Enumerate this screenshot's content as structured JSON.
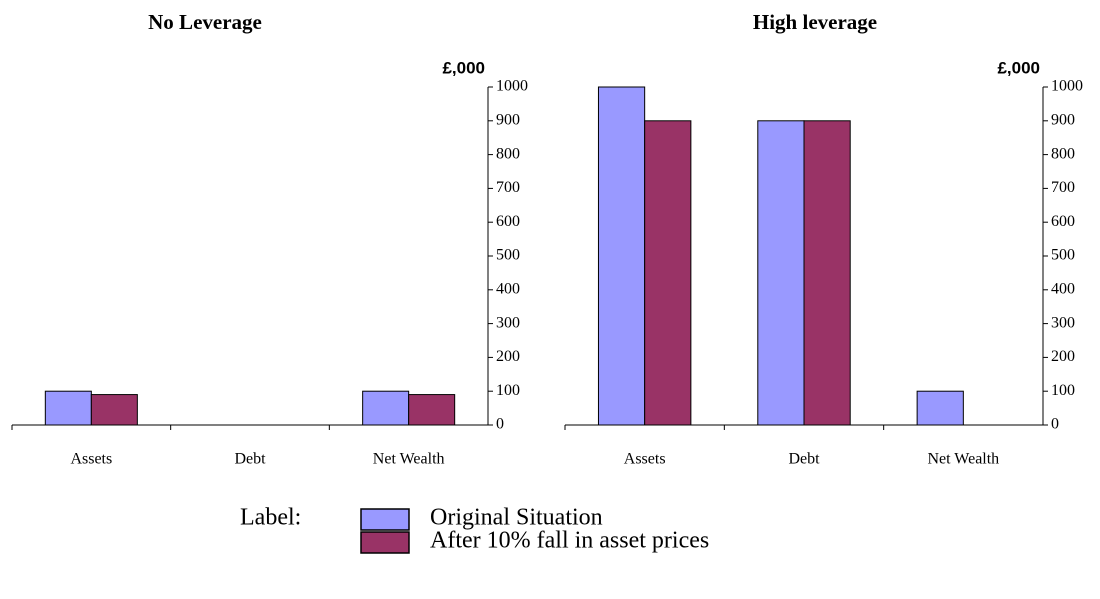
{
  "chart_data": [
    {
      "type": "bar",
      "title": "No Leverage",
      "y_axis_label": "£,000",
      "categories": [
        "Assets",
        "Debt",
        "Net Wealth"
      ],
      "series": [
        {
          "name": "Original Situation",
          "color": "#9999ff",
          "values": [
            100,
            0,
            100
          ]
        },
        {
          "name": "After 10% fall in asset prices",
          "color": "#993366",
          "values": [
            90,
            0,
            90
          ]
        }
      ],
      "ylim": [
        0,
        1000
      ],
      "yticks": [
        0,
        100,
        200,
        300,
        400,
        500,
        600,
        700,
        800,
        900,
        1000
      ]
    },
    {
      "type": "bar",
      "title": "High leverage",
      "y_axis_label": "£,000",
      "categories": [
        "Assets",
        "Debt",
        "Net Wealth"
      ],
      "series": [
        {
          "color": "#9999ff",
          "values": [
            1000,
            900,
            100
          ]
        },
        {
          "color": "#993366",
          "values": [
            900,
            900,
            0
          ]
        }
      ],
      "ylim": [
        0,
        1000
      ],
      "yticks": [
        0,
        100,
        200,
        300,
        400,
        500,
        600,
        700,
        800,
        900,
        1000
      ]
    }
  ],
  "legend": {
    "title": "Label:"
  }
}
